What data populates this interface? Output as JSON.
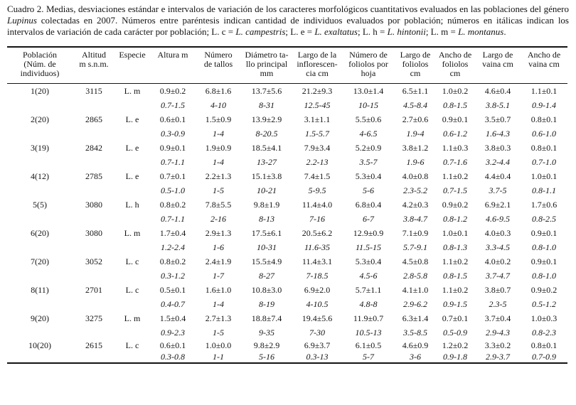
{
  "caption": {
    "segments": [
      {
        "text": "Cuadro 2. Medias, desviaciones estándar e intervalos de variación de los caracteres morfológicos cuantitativos evaluados en las poblaciones del género ",
        "italic": false
      },
      {
        "text": "Lupinus",
        "italic": true
      },
      {
        "text": " colectadas en 2007. Números entre paréntesis indican cantidad de individuos evaluados por población; números en itálicas indican los intervalos de variación de cada carácter por población; L. c = ",
        "italic": false
      },
      {
        "text": "L. campestris",
        "italic": true
      },
      {
        "text": "; L. e = ",
        "italic": false
      },
      {
        "text": "L. exaltatus",
        "italic": true
      },
      {
        "text": "; L. h = ",
        "italic": false
      },
      {
        "text": "L. hintonii",
        "italic": true
      },
      {
        "text": "; L. m = ",
        "italic": false
      },
      {
        "text": "L. montanus",
        "italic": true
      },
      {
        "text": ".",
        "italic": false
      }
    ]
  },
  "table": {
    "headers": [
      {
        "lines": [
          "Población",
          "(Núm. de",
          "individuos)"
        ]
      },
      {
        "lines": [
          "Altitud",
          "m s.n.m."
        ]
      },
      {
        "lines": [
          "Especie"
        ]
      },
      {
        "lines": [
          "Altura m"
        ]
      },
      {
        "lines": [
          "Número",
          "de tallos"
        ]
      },
      {
        "lines": [
          "Diámetro ta-",
          "llo principal",
          "mm"
        ]
      },
      {
        "lines": [
          "Largo de la",
          "inflorescen-",
          "cia cm"
        ]
      },
      {
        "lines": [
          "Número de",
          "foliolos por",
          "hoja"
        ]
      },
      {
        "lines": [
          "Largo de",
          "foliolos",
          "cm"
        ]
      },
      {
        "lines": [
          "Ancho de",
          "foliolos",
          "cm"
        ]
      },
      {
        "lines": [
          "Largo de",
          "vaina cm"
        ]
      },
      {
        "lines": [
          "Ancho de",
          "vaina cm"
        ]
      }
    ],
    "populations": [
      {
        "id": "1(20)",
        "altitude": "3115",
        "species": "L. m",
        "means": [
          "0.9±0.2",
          "6.8±1.6",
          "13.7±5.6",
          "21.2±9.3",
          "13.0±1.4",
          "6.5±1.1",
          "1.0±0.2",
          "4.6±0.4",
          "1.1±0.1"
        ],
        "ranges": [
          "0.7-1.5",
          "4-10",
          "8-31",
          "12.5-45",
          "10-15",
          "4.5-8.4",
          "0.8-1.5",
          "3.8-5.1",
          "0.9-1.4"
        ]
      },
      {
        "id": "2(20)",
        "altitude": "2865",
        "species": "L. e",
        "means": [
          "0.6±0.1",
          "1.5±0.9",
          "13.9±2.9",
          "3.1±1.1",
          "5.5±0.6",
          "2.7±0.6",
          "0.9±0.1",
          "3.5±0.7",
          "0.8±0.1"
        ],
        "ranges": [
          "0.3-0.9",
          "1-4",
          "8-20.5",
          "1.5-5.7",
          "4-6.5",
          "1.9-4",
          "0.6-1.2",
          "1.6-4.3",
          "0.6-1.0"
        ]
      },
      {
        "id": "3(19)",
        "altitude": "2842",
        "species": "L. e",
        "means": [
          "0.9±0.1",
          "1.9±0.9",
          "18.5±4.1",
          "7.9±3.4",
          "5.2±0.9",
          "3.8±1.2",
          "1.1±0.3",
          "3.8±0.3",
          "0.8±0.1"
        ],
        "ranges": [
          "0.7-1.1",
          "1-4",
          "13-27",
          "2.2-13",
          "3.5-7",
          "1.9-6",
          "0.7-1.6",
          "3.2-4.4",
          "0.7-1.0"
        ]
      },
      {
        "id": "4(12)",
        "altitude": "2785",
        "species": "L. e",
        "means": [
          "0.7±0.1",
          "2.2±1.3",
          "15.1±3.8",
          "7.4±1.5",
          "5.3±0.4",
          "4.0±0.8",
          "1.1±0.2",
          "4.4±0.4",
          "1.0±0.1"
        ],
        "ranges": [
          "0.5-1.0",
          "1-5",
          "10-21",
          "5-9.5",
          "5-6",
          "2.3-5.2",
          "0.7-1.5",
          "3.7-5",
          "0.8-1.1"
        ]
      },
      {
        "id": "5(5)",
        "altitude": "3080",
        "species": "L. h",
        "means": [
          "0.8±0.2",
          "7.8±5.5",
          "9.8±1.9",
          "11.4±4.0",
          "6.8±0.4",
          "4.2±0.3",
          "0.9±0.2",
          "6.9±2.1",
          "1.7±0.6"
        ],
        "ranges": [
          "0.7-1.1",
          "2-16",
          "8-13",
          "7-16",
          "6-7",
          "3.8-4.7",
          "0.8-1.2",
          "4.6-9.5",
          "0.8-2.5"
        ]
      },
      {
        "id": "6(20)",
        "altitude": "3080",
        "species": "L. m",
        "means": [
          "1.7±0.4",
          "2.9±1.3",
          "17.5±6.1",
          "20.5±6.2",
          "12.9±0.9",
          "7.1±0.9",
          "1.0±0.1",
          "4.0±0.3",
          "0.9±0.1"
        ],
        "ranges": [
          "1.2-2.4",
          "1-6",
          "10-31",
          "11.6-35",
          "11.5-15",
          "5.7-9.1",
          "0.8-1.3",
          "3.3-4.5",
          "0.8-1.0"
        ]
      },
      {
        "id": "7(20)",
        "altitude": "3052",
        "species": "L. c",
        "means": [
          "0.8±0.2",
          "2.4±1.9",
          "15.5±4.9",
          "11.4±3.1",
          "5.3±0.4",
          "4.5±0.8",
          "1.1±0.2",
          "4.0±0.2",
          "0.9±0.1"
        ],
        "ranges": [
          "0.3-1.2",
          "1-7",
          "8-27",
          "7-18.5",
          "4.5-6",
          "2.8-5.8",
          "0.8-1.5",
          "3.7-4.7",
          "0.8-1.0"
        ]
      },
      {
        "id": "8(11)",
        "altitude": "2701",
        "species": "L. c",
        "means": [
          "0.5±0.1",
          "1.6±1.0",
          "10.8±3.0",
          "6.9±2.0",
          "5.7±1.1",
          "4.1±1.0",
          "1.1±0.2",
          "3.8±0.7",
          "0.9±0.2"
        ],
        "ranges": [
          "0.4-0.7",
          "1-4",
          "8-19",
          "4-10.5",
          "4.8-8",
          "2.9-6.2",
          "0.9-1.5",
          "2.3-5",
          "0.5-1.2"
        ]
      },
      {
        "id": "9(20)",
        "altitude": "3275",
        "species": "L. m",
        "means": [
          "1.5±0.4",
          "2.7±1.3",
          "18.8±7.4",
          "19.4±5.6",
          "11.9±0.7",
          "6.3±1.4",
          "0.7±0.1",
          "3.7±0.4",
          "1.0±0.3"
        ],
        "ranges": [
          "0.9-2.3",
          "1-5",
          "9-35",
          "7-30",
          "10.5-13",
          "3.5-8.5",
          "0.5-0.9",
          "2.9-4.3",
          "0.8-2.3"
        ]
      },
      {
        "id": "10(20)",
        "altitude": "2615",
        "species": "L. c",
        "means": [
          "0.6±0.1",
          "1.0±0.0",
          "9.8±2.9",
          "6.9±3.7",
          "6.1±0.5",
          "4.6±0.9",
          "1.2±0.2",
          "3.3±0.2",
          "0.8±0.1"
        ],
        "ranges": [
          "0.3-0.8",
          "1-1",
          "5-16",
          "0.3-13",
          "5-7",
          "3-6",
          "0.9-1.8",
          "2.9-3.7",
          "0.7-0.9"
        ]
      }
    ]
  }
}
